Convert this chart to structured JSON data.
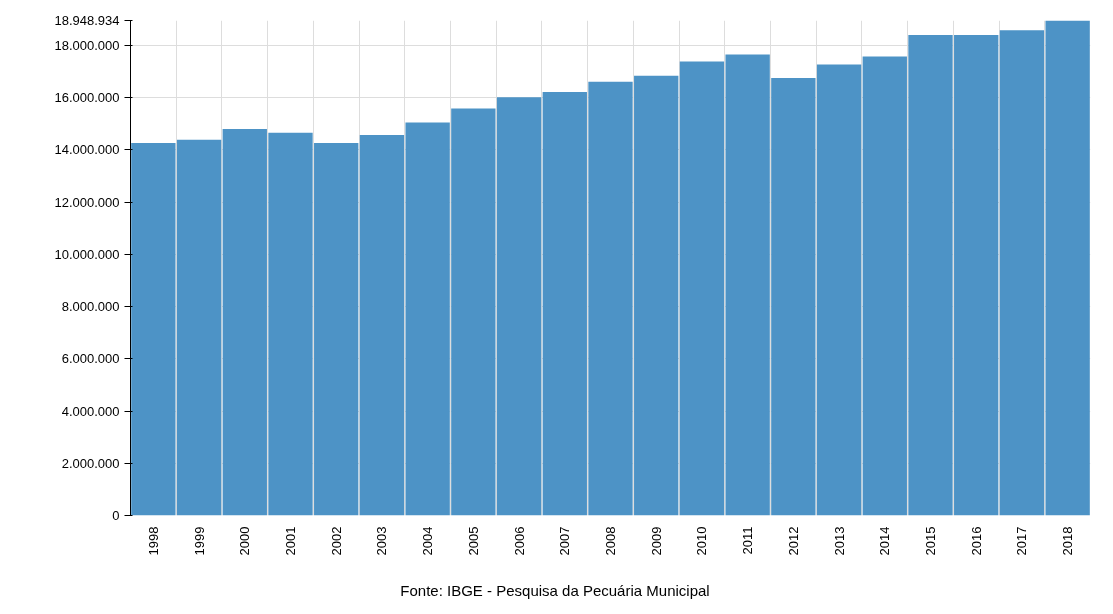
{
  "chart_data": {
    "type": "bar",
    "categories": [
      "1998",
      "1999",
      "2000",
      "2001",
      "2002",
      "2003",
      "2004",
      "2005",
      "2006",
      "2007",
      "2008",
      "2009",
      "2010",
      "2011",
      "2012",
      "2013",
      "2014",
      "2015",
      "2016",
      "2017",
      "2018"
    ],
    "values": [
      14260000,
      14380000,
      14800000,
      14650000,
      14260000,
      14570000,
      15040000,
      15580000,
      16010000,
      16210000,
      16600000,
      16830000,
      17380000,
      17650000,
      16750000,
      17260000,
      17570000,
      18390000,
      18390000,
      18580000,
      18948934
    ],
    "color": "#4d93c6",
    "ylim": [
      0,
      18948934
    ],
    "yticks": [
      {
        "value": 0,
        "label": "0"
      },
      {
        "value": 2000000,
        "label": "2.000.000"
      },
      {
        "value": 4000000,
        "label": "4.000.000"
      },
      {
        "value": 6000000,
        "label": "6.000.000"
      },
      {
        "value": 8000000,
        "label": "8.000.000"
      },
      {
        "value": 10000000,
        "label": "10.000.000"
      },
      {
        "value": 12000000,
        "label": "12.000.000"
      },
      {
        "value": 14000000,
        "label": "14.000.000"
      },
      {
        "value": 16000000,
        "label": "16.000.000"
      },
      {
        "value": 18000000,
        "label": "18.000.000"
      },
      {
        "value": 18948934,
        "label": "18.948.934"
      }
    ],
    "grid": true,
    "annotations": [
      "Fonte: IBGE - Pesquisa da Pecuária Municipal"
    ]
  }
}
